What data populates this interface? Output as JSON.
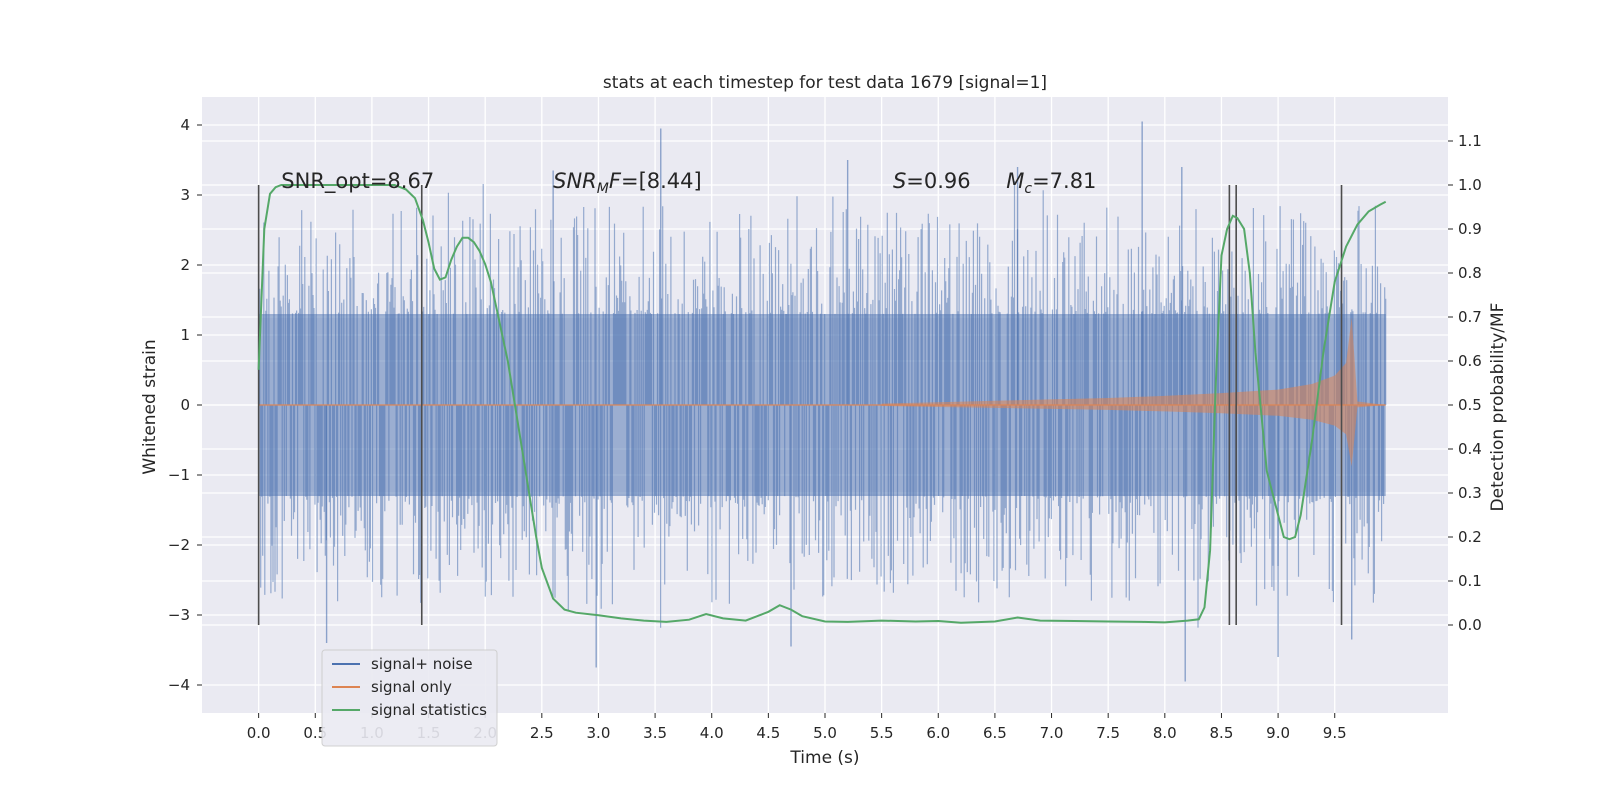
{
  "chart_data": {
    "type": "line",
    "title": "stats at each timestep for test data 1679 [signal=1]",
    "xlabel": "Time (s)",
    "ylabel": "Whitened strain",
    "y2label": "Detection probability/MF",
    "xlim": [
      -0.5,
      10.5
    ],
    "ylim": [
      -4.4,
      4.4
    ],
    "y2lim": [
      -0.2,
      1.2
    ],
    "xticks": [
      "0.0",
      "0.5",
      "1.0",
      "1.5",
      "2.0",
      "2.5",
      "3.0",
      "3.5",
      "4.0",
      "4.5",
      "5.0",
      "5.5",
      "6.0",
      "6.5",
      "7.0",
      "7.5",
      "8.0",
      "8.5",
      "9.0",
      "9.5"
    ],
    "yticks": [
      "4",
      "3",
      "2",
      "1",
      "0",
      "−1",
      "−2",
      "−3",
      "−4"
    ],
    "y2ticks": [
      "1.1",
      "1.0",
      "0.9",
      "0.8",
      "0.7",
      "0.6",
      "0.5",
      "0.4",
      "0.3",
      "0.2",
      "0.1",
      "0.0"
    ],
    "grid": true,
    "legend_position": "lower-left",
    "annotations": [
      {
        "x": 0.2,
        "y": 3.2,
        "text": "SNR_opt=8.67"
      },
      {
        "x": 2.6,
        "y": 3.2,
        "text": "SNR",
        "sub": "M",
        "tail": "F=[8.44]"
      },
      {
        "x": 5.6,
        "y": 3.2,
        "text": "S",
        "tail": "=0.96"
      },
      {
        "x": 6.6,
        "y": 3.2,
        "text": "M",
        "sub": "c",
        "tail": "=7.81"
      }
    ],
    "vlines": [
      0.0,
      1.44,
      8.57,
      8.63,
      9.56
    ],
    "series": [
      {
        "name": "signal+ noise",
        "color": "#4c72b0",
        "description_envelope": {
          "t_start": 0.0,
          "t_end": 9.95,
          "core_amplitude": 1.3,
          "peak_max": 4.05,
          "peak_min": -4.0
        },
        "peaks": [
          {
            "x": 3.55,
            "y": 3.95
          },
          {
            "x": 7.8,
            "y": 4.05
          },
          {
            "x": 2.98,
            "y": -3.75
          },
          {
            "x": 8.18,
            "y": -3.95
          },
          {
            "x": 9.0,
            "y": -3.6
          },
          {
            "x": 9.65,
            "y": -3.35
          },
          {
            "x": 0.6,
            "y": -3.4
          },
          {
            "x": 4.7,
            "y": -3.45
          },
          {
            "x": 5.2,
            "y": 3.5
          },
          {
            "x": 6.7,
            "y": 3.4
          },
          {
            "x": 8.15,
            "y": 3.4
          },
          {
            "x": 2.6,
            "y": 3.35
          }
        ]
      },
      {
        "name": "signal only",
        "color": "#dd8452",
        "x": [
          5.5,
          6.0,
          6.5,
          7.0,
          7.5,
          8.0,
          8.5,
          9.0,
          9.3,
          9.5,
          9.6,
          9.65,
          9.7,
          9.95
        ],
        "amplitude": [
          0.02,
          0.04,
          0.06,
          0.08,
          0.1,
          0.13,
          0.17,
          0.22,
          0.3,
          0.42,
          0.6,
          1.25,
          0.05,
          0.0
        ]
      },
      {
        "name": "signal statistics",
        "color": "#55a868",
        "axis": "right",
        "x": [
          0.0,
          0.05,
          0.1,
          0.15,
          0.2,
          0.3,
          0.5,
          0.8,
          1.0,
          1.2,
          1.3,
          1.38,
          1.45,
          1.5,
          1.55,
          1.6,
          1.65,
          1.7,
          1.75,
          1.8,
          1.85,
          1.9,
          1.95,
          2.0,
          2.05,
          2.1,
          2.2,
          2.3,
          2.4,
          2.45,
          2.5,
          2.6,
          2.7,
          2.8,
          3.0,
          3.2,
          3.4,
          3.6,
          3.8,
          3.95,
          4.1,
          4.3,
          4.5,
          4.6,
          4.7,
          4.8,
          5.0,
          5.2,
          5.5,
          5.8,
          6.0,
          6.2,
          6.5,
          6.7,
          6.9,
          7.2,
          7.5,
          7.8,
          8.0,
          8.2,
          8.3,
          8.35,
          8.4,
          8.45,
          8.5,
          8.55,
          8.6,
          8.64,
          8.7,
          8.75,
          8.8,
          8.9,
          9.0,
          9.05,
          9.1,
          9.15,
          9.2,
          9.3,
          9.4,
          9.5,
          9.6,
          9.7,
          9.8,
          9.9,
          9.95
        ],
        "y": [
          0.58,
          0.9,
          0.98,
          0.995,
          1.0,
          1.0,
          1.0,
          1.0,
          1.0,
          1.0,
          0.99,
          0.97,
          0.92,
          0.87,
          0.81,
          0.785,
          0.79,
          0.83,
          0.86,
          0.88,
          0.88,
          0.87,
          0.85,
          0.82,
          0.78,
          0.72,
          0.6,
          0.44,
          0.28,
          0.2,
          0.13,
          0.06,
          0.035,
          0.028,
          0.022,
          0.015,
          0.01,
          0.007,
          0.012,
          0.025,
          0.015,
          0.01,
          0.03,
          0.045,
          0.035,
          0.02,
          0.008,
          0.007,
          0.01,
          0.008,
          0.009,
          0.005,
          0.008,
          0.017,
          0.01,
          0.009,
          0.008,
          0.007,
          0.006,
          0.01,
          0.013,
          0.04,
          0.17,
          0.55,
          0.84,
          0.9,
          0.93,
          0.925,
          0.9,
          0.8,
          0.62,
          0.35,
          0.25,
          0.2,
          0.195,
          0.2,
          0.25,
          0.42,
          0.62,
          0.78,
          0.86,
          0.91,
          0.94,
          0.955,
          0.962
        ]
      }
    ]
  }
}
